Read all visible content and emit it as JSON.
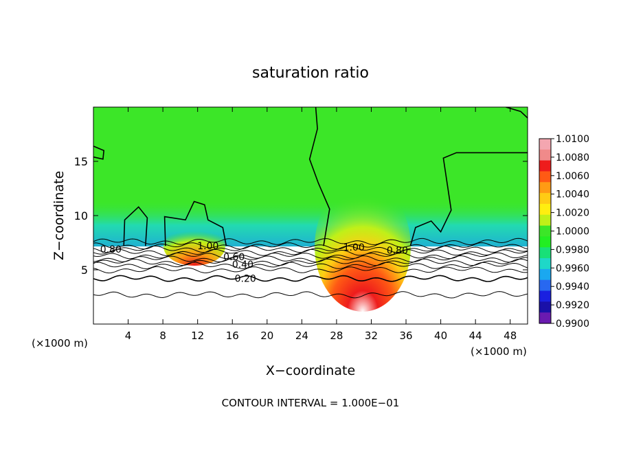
{
  "chart_data": {
    "type": "heatmap",
    "title": "saturation ratio",
    "xlabel": "X−coordinate",
    "ylabel": "Z−coordinate",
    "x_unit_left": "(×1000 m)",
    "x_unit_right": "(×1000 m)",
    "footer": "CONTOUR INTERVAL = 1.000E−01",
    "xlim": [
      0,
      50
    ],
    "ylim": [
      0,
      20
    ],
    "x_ticks": [
      4,
      8,
      12,
      16,
      20,
      24,
      28,
      32,
      36,
      40,
      44,
      48
    ],
    "y_ticks": [
      5,
      10,
      15
    ],
    "colorbar": {
      "levels": [
        "1.0100",
        "1.0080",
        "1.0060",
        "1.0040",
        "1.0020",
        "1.0000",
        "0.9980",
        "0.9960",
        "0.9940",
        "0.9920",
        "0.9900"
      ],
      "colors": [
        "#f4a6b0",
        "#f08a8a",
        "#ee1c1c",
        "#ff5a14",
        "#ff9b14",
        "#ffcc14",
        "#ffee10",
        "#c0f018",
        "#3ce628",
        "#22ee22",
        "#18e078",
        "#1ed8c8",
        "#1aa8f0",
        "#2868f0",
        "#1a20e0",
        "#1a10a8",
        "#6a1ab0"
      ]
    },
    "contour_labels": [
      {
        "text": "0.80",
        "x": 2.0,
        "y": 6.9
      },
      {
        "text": "1.00",
        "x": 13.2,
        "y": 7.2
      },
      {
        "text": "0.60",
        "x": 16.2,
        "y": 6.2
      },
      {
        "text": "0.40",
        "x": 17.2,
        "y": 5.5
      },
      {
        "text": "0.20",
        "x": 17.5,
        "y": 4.2
      },
      {
        "text": "1.00",
        "x": 30.0,
        "y": 7.1
      },
      {
        "text": "0.80",
        "x": 35.0,
        "y": 6.8
      }
    ]
  }
}
